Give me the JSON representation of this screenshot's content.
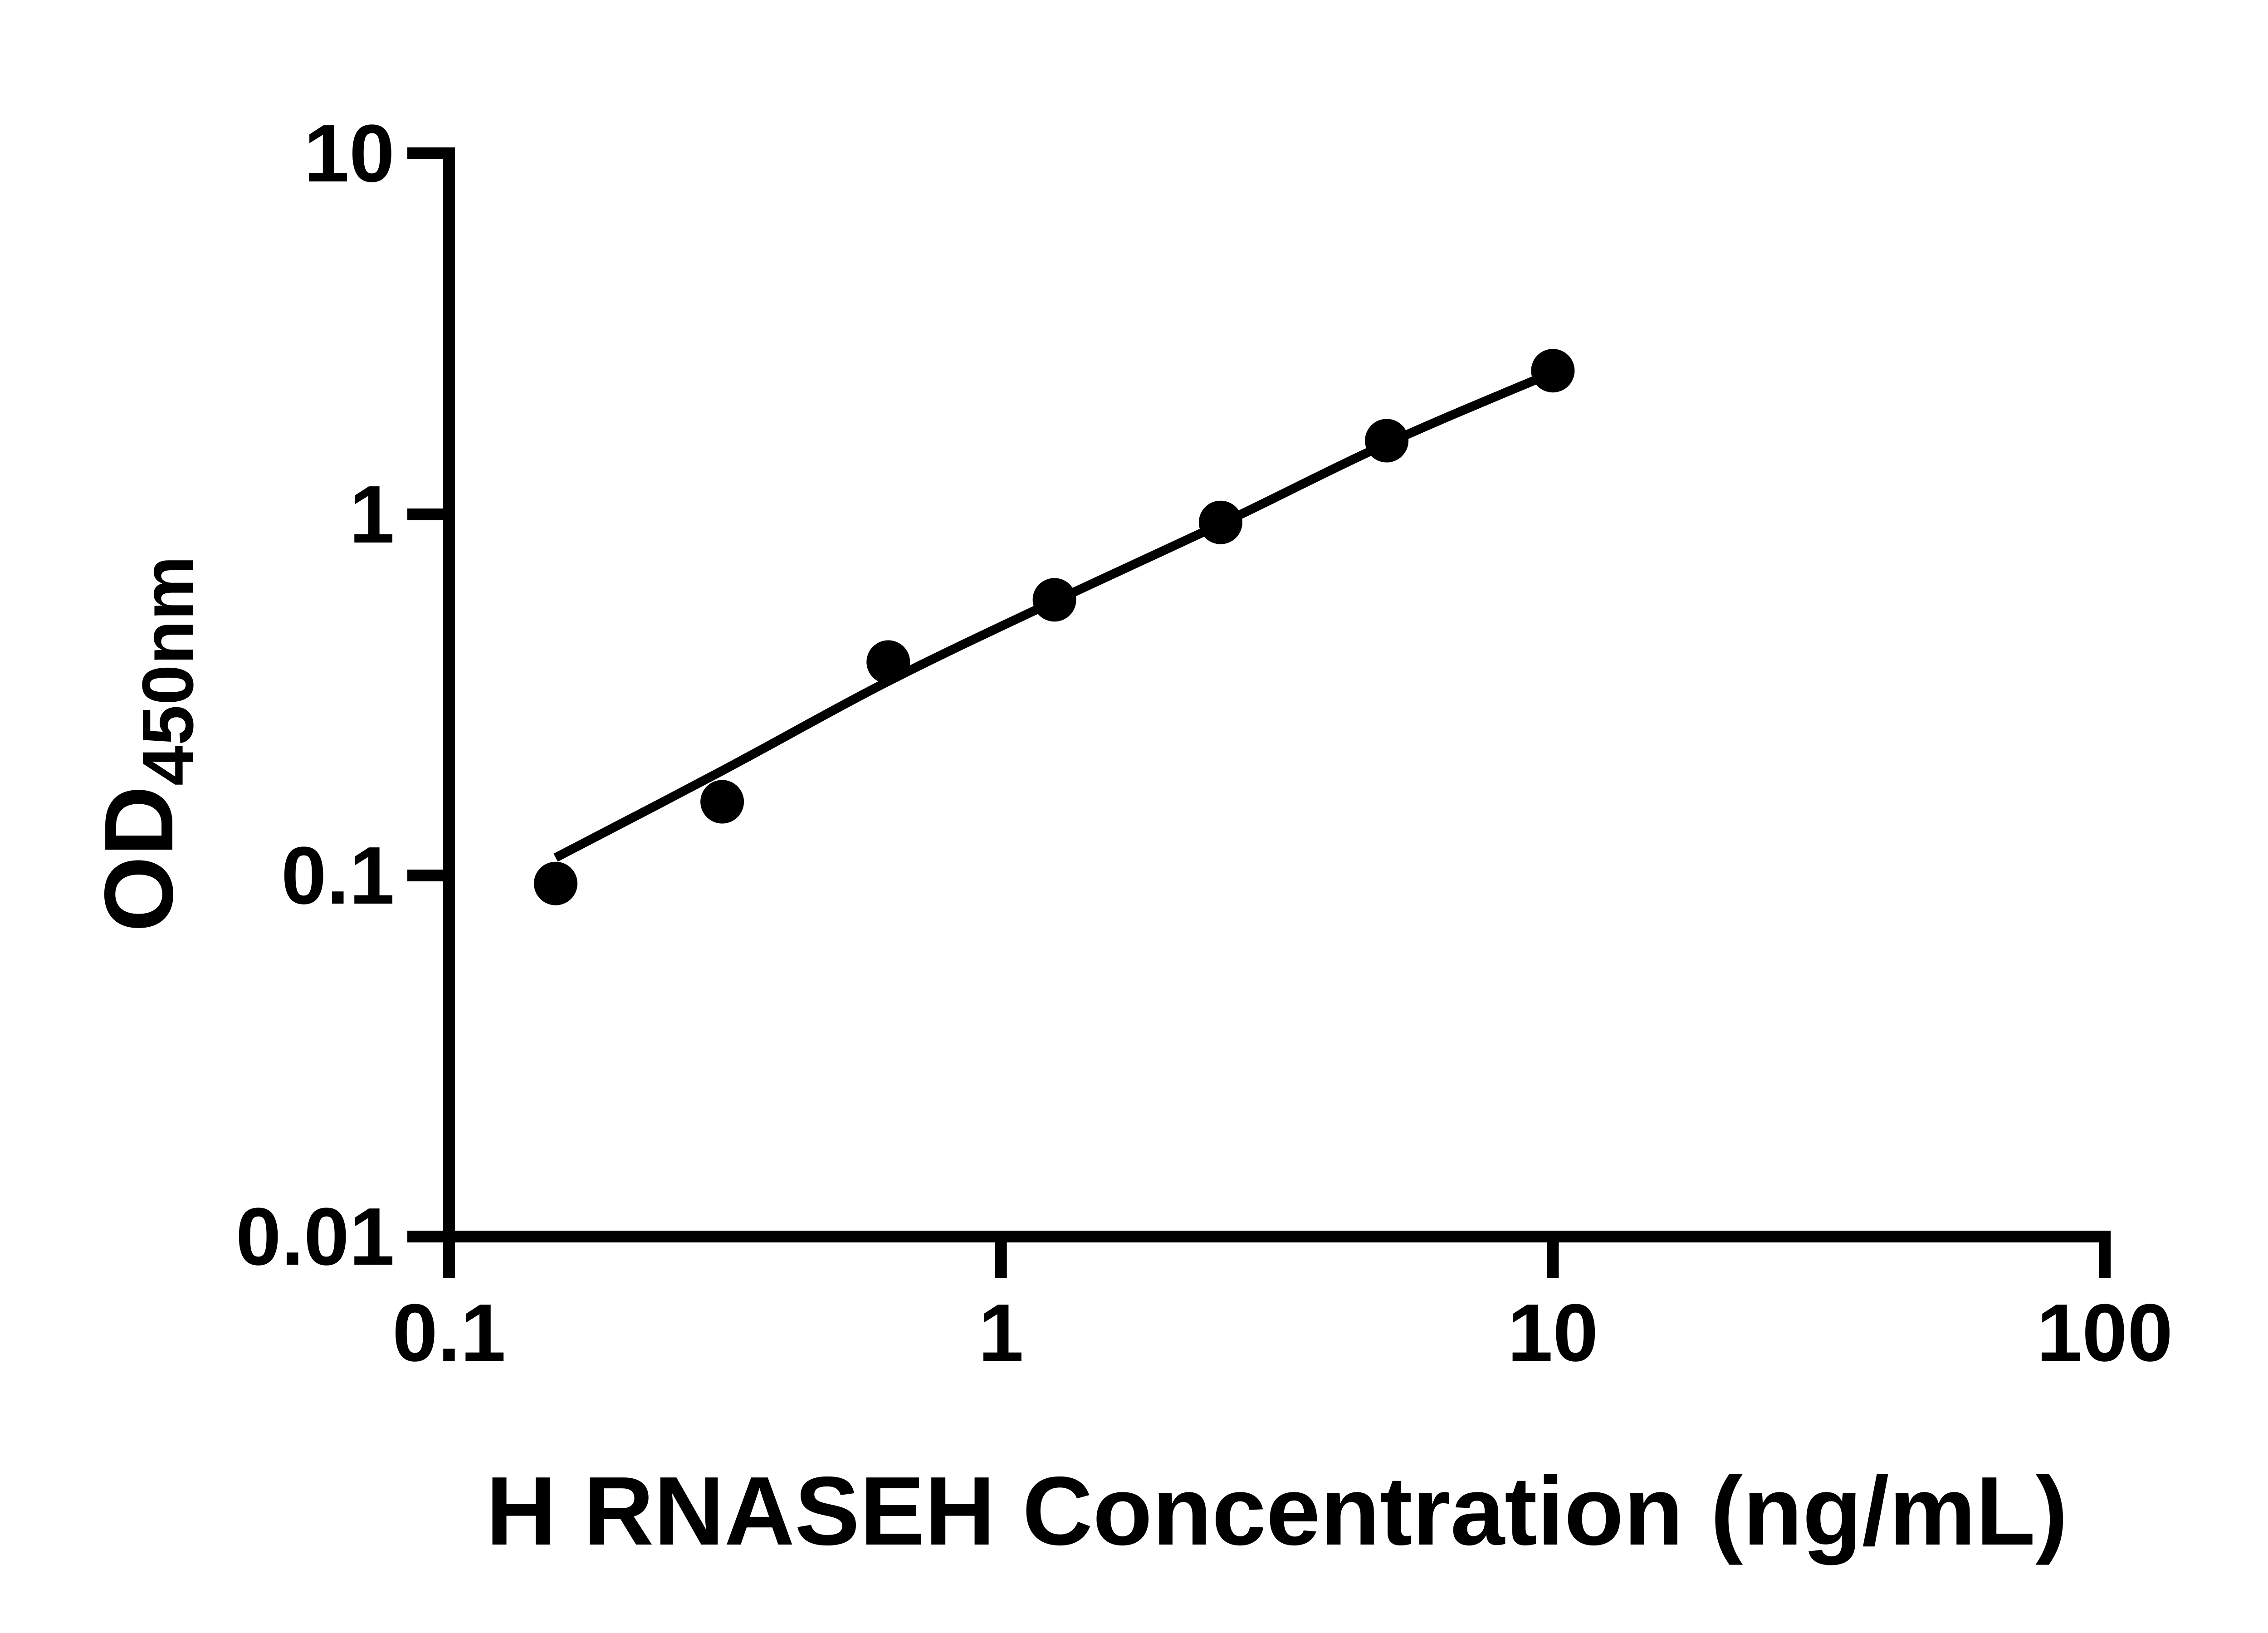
{
  "figure": {
    "background_color": "#ffffff",
    "ink_color": "#000000"
  },
  "chart_data": {
    "type": "scatter",
    "title": "",
    "x_axis": {
      "label": "H RNASEH Concentration (ng/mL)",
      "scale": "log",
      "range": [
        0.1,
        100
      ],
      "ticks": [
        0.1,
        1,
        10,
        100
      ],
      "tick_labels": [
        "0.1",
        "1",
        "10",
        "100"
      ],
      "grid": false
    },
    "y_axis": {
      "label": "OD450nm",
      "label_main": "OD",
      "label_sub": "450nm",
      "scale": "log",
      "range": [
        0.01,
        10
      ],
      "ticks": [
        10,
        1,
        0.1,
        0.01
      ],
      "tick_labels": [
        "10",
        "1",
        "0.1",
        "0.01"
      ],
      "grid": false
    },
    "legend": null,
    "series": [
      {
        "name": "standard-curve-points",
        "marker": "filled-circle",
        "color": "#000000",
        "x": [
          0.156,
          0.3125,
          0.625,
          1.25,
          2.5,
          5,
          10
        ],
        "y": [
          0.095,
          0.16,
          0.39,
          0.58,
          0.95,
          1.6,
          2.5
        ]
      }
    ],
    "fit_line": {
      "name": "fitted-standard-curve",
      "color": "#000000",
      "x": [
        0.156,
        0.3125,
        0.625,
        1.25,
        2.5,
        5,
        10
      ],
      "y": [
        0.112,
        0.195,
        0.345,
        0.575,
        0.94,
        1.57,
        2.47
      ]
    }
  }
}
